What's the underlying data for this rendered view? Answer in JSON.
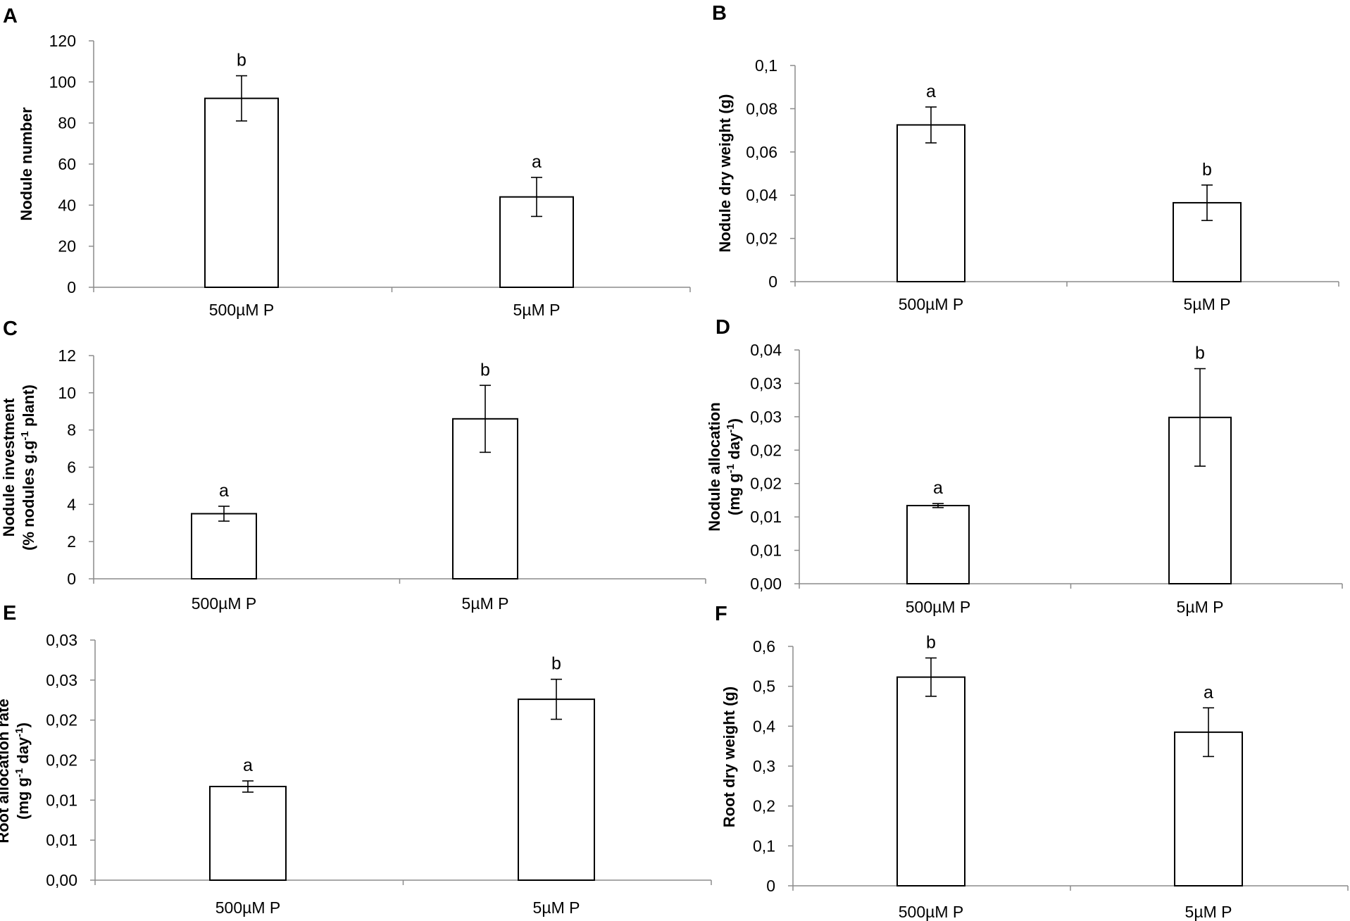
{
  "figure": {
    "background": "#ffffff",
    "bar_fill": "#ffffff",
    "bar_stroke": "#000000",
    "axis_color": "#8c8c8c"
  },
  "chart_data": [
    {
      "panel": "A",
      "type": "bar",
      "categories": [
        "500µM P",
        "5µM P"
      ],
      "values": [
        92,
        44
      ],
      "errors": [
        11,
        9.5
      ],
      "significance": [
        "b",
        "a"
      ],
      "ylabel": [
        "Nodule number"
      ],
      "ylim": [
        0,
        120
      ],
      "yticks": [
        0,
        20,
        40,
        60,
        80,
        100,
        120
      ],
      "ytick_labels": [
        "0",
        "20",
        "40",
        "60",
        "80",
        "100",
        "120"
      ]
    },
    {
      "panel": "B",
      "type": "bar",
      "categories": [
        "500µM P",
        "5µM P"
      ],
      "values": [
        0.0725,
        0.0365
      ],
      "errors": [
        0.0083,
        0.0082
      ],
      "significance": [
        "a",
        "b"
      ],
      "ylabel": [
        "Nodule dry weight (g)"
      ],
      "ylim": [
        0,
        0.1
      ],
      "yticks": [
        0,
        0.02,
        0.04,
        0.06,
        0.08,
        0.1
      ],
      "ytick_labels": [
        "0",
        "0,02",
        "0,04",
        "0,06",
        "0,08",
        "0,1"
      ]
    },
    {
      "panel": "C",
      "type": "bar",
      "categories": [
        "500µM P",
        "5µM P"
      ],
      "values": [
        3.5,
        8.6
      ],
      "errors": [
        0.4,
        1.8
      ],
      "significance": [
        "a",
        "b"
      ],
      "ylabel": [
        "Nodule investment",
        "(% nodules g.g-1 plant)"
      ],
      "ylim": [
        0,
        12
      ],
      "yticks": [
        0,
        2,
        4,
        6,
        8,
        10,
        12
      ],
      "ytick_labels": [
        "0",
        "2",
        "4",
        "6",
        "8",
        "10",
        "12"
      ]
    },
    {
      "panel": "D",
      "type": "bar",
      "categories": [
        "500µM P",
        "5µM P"
      ],
      "values": [
        0.0117,
        0.0249
      ],
      "errors": [
        0.0003,
        0.0073
      ],
      "significance": [
        "a",
        "b"
      ],
      "ylabel": [
        "Nodule allocation",
        "(mg g-1 day-1)"
      ],
      "ylim": [
        0,
        0.035
      ],
      "yticks": [
        0,
        0.005,
        0.01,
        0.015,
        0.02,
        0.025,
        0.03,
        0.035
      ],
      "ytick_labels": [
        "0,00",
        "0,01",
        "0,01",
        "0,02",
        "0,02",
        "0,03",
        "0,03",
        "0,04"
      ]
    },
    {
      "panel": "E",
      "type": "bar",
      "categories": [
        "500µM P",
        "5µM P"
      ],
      "values": [
        0.0117,
        0.0226
      ],
      "errors": [
        0.0007,
        0.0025
      ],
      "significance": [
        "a",
        "b"
      ],
      "ylabel": [
        "Root allocation rate",
        "(mg g-1 day-1)"
      ],
      "ylim": [
        0,
        0.03
      ],
      "yticks": [
        0,
        0.005,
        0.01,
        0.015,
        0.02,
        0.025,
        0.03
      ],
      "ytick_labels": [
        "0,00",
        "0,01",
        "0,01",
        "0,02",
        "0,02",
        "0,03",
        "0,03"
      ]
    },
    {
      "panel": "F",
      "type": "bar",
      "categories": [
        "500µM P",
        "5µM P"
      ],
      "values": [
        0.523,
        0.385
      ],
      "errors": [
        0.048,
        0.061
      ],
      "significance": [
        "b",
        "a"
      ],
      "ylabel": [
        "Root dry weight (g)"
      ],
      "ylim": [
        0,
        0.6
      ],
      "yticks": [
        0,
        0.1,
        0.2,
        0.3,
        0.4,
        0.5,
        0.6
      ],
      "ytick_labels": [
        "0",
        "0,1",
        "0,2",
        "0,3",
        "0,4",
        "0,5",
        "0,6"
      ]
    }
  ]
}
